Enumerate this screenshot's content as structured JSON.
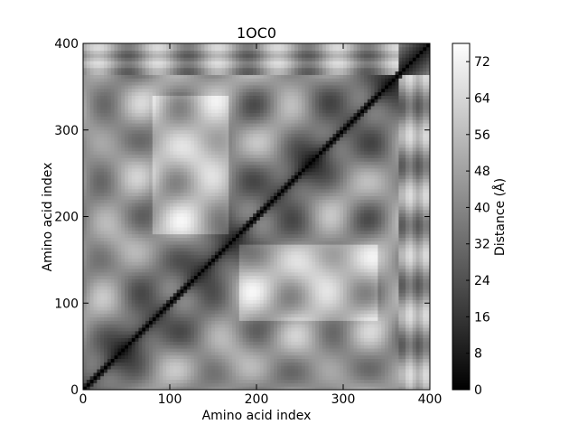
{
  "chart_data": {
    "type": "heatmap",
    "title": "1OC0",
    "xlabel": "Amino acid index",
    "ylabel": "Amino acid index",
    "xlim": [
      0,
      400
    ],
    "ylim": [
      0,
      400
    ],
    "x_ticks": [
      0,
      100,
      200,
      300,
      400
    ],
    "y_ticks": [
      0,
      100,
      200,
      300,
      400
    ],
    "domain_boundary_index": 365,
    "colormap": "gray",
    "colorbar": {
      "label": "Distance (Å)",
      "min": 0,
      "max": 76,
      "ticks": [
        0,
        8,
        16,
        24,
        32,
        40,
        48,
        56,
        64,
        72
      ]
    },
    "diagonal_value": 0
  }
}
